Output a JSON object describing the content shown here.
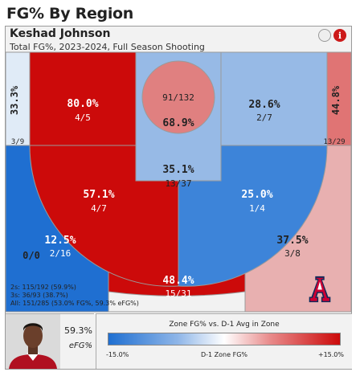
{
  "page_title": "FG% By Region",
  "header": {
    "player_name": "Keshad Johnson",
    "subtitle": "Total FG%, 2023-2024, Full Season Shooting",
    "info_icon": "i"
  },
  "chart_data": {
    "type": "heatmap",
    "zones": [
      {
        "id": "left-corner-three",
        "pct": "33.3%",
        "made_att": "3/9",
        "color": "#e0ebf7",
        "text": "#222222"
      },
      {
        "id": "left-wing-long-two",
        "pct": "80.0%",
        "made_att": "4/5",
        "color": "#cc0a0a",
        "text": "#ffffff"
      },
      {
        "id": "restricted-area",
        "pct": "68.9%",
        "made_att": "91/132",
        "color": "#e08080",
        "text": "#222222"
      },
      {
        "id": "right-wing-long-two",
        "pct": "28.6%",
        "made_att": "2/7",
        "color": "#97bae6",
        "text": "#222222"
      },
      {
        "id": "right-corner-three",
        "pct": "44.8%",
        "made_att": "13/29",
        "color": "#e07474",
        "text": "#222222"
      },
      {
        "id": "paint",
        "pct": "35.1%",
        "made_att": "13/37",
        "color": "#97bae6",
        "text": "#222222"
      },
      {
        "id": "left-elbow-mid",
        "pct": "57.1%",
        "made_att": "4/7",
        "color": "#cc0a0a",
        "text": "#ffffff"
      },
      {
        "id": "right-elbow-mid",
        "pct": "25.0%",
        "made_att": "1/4",
        "color": "#3d84d9",
        "text": "#ffffff"
      },
      {
        "id": "left-wing-three",
        "pct": "12.5%",
        "made_att": "2/16",
        "color": "#1f6fd1",
        "text": "#ffffff"
      },
      {
        "id": "top-key-three",
        "pct": "48.4%",
        "made_att": "15/31",
        "color": "#cc0a0a",
        "text": "#ffffff"
      },
      {
        "id": "right-wing-three",
        "pct": "37.5%",
        "made_att": "3/8",
        "color": "#e8b0b0",
        "text": "#222222"
      },
      {
        "id": "deep",
        "pct": "0/0",
        "made_att": "",
        "color": "#f2f2f2",
        "text": "#222222"
      }
    ]
  },
  "notes": [
    "2s: 115/192 (59.9%)",
    "3s: 36/93 (38.7%)",
    "All: 151/285 (53.0% FG%, 59.3% eFG%)"
  ],
  "logo": {
    "letter": "A",
    "color_navy": "#0c2a5b",
    "color_red": "#cc0033"
  },
  "efg": {
    "value": "59.3%",
    "label": "eFG%"
  },
  "legend": {
    "title": "Zone FG% vs. D-1 Avg in Zone",
    "min": "-15.0%",
    "mid": "D-1 Zone FG%",
    "max": "+15.0%"
  }
}
